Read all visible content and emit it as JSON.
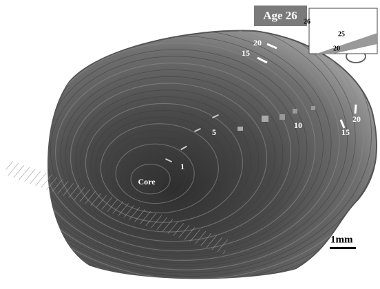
{
  "badge": "Age 26",
  "inset": {
    "labels": [
      "26",
      "25",
      "20"
    ]
  },
  "annotations": [
    "20",
    "15",
    "1",
    "5",
    "10",
    "20",
    "15"
  ],
  "core": "Core",
  "scale_bar": "1mm"
}
